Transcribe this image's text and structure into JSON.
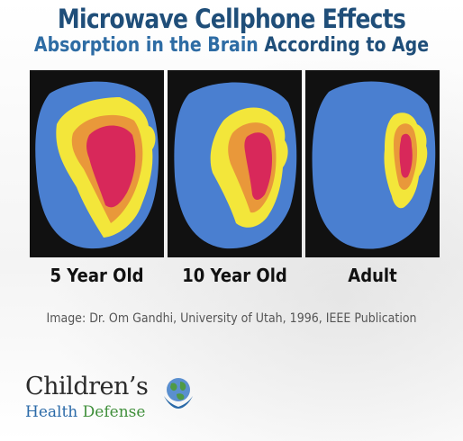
{
  "header": {
    "title": "Microwave Cellphone Effects",
    "subtitle_plain": "Absorption in the Brain ",
    "subtitle_bold": "According to Age"
  },
  "scans": [
    {
      "label": "5 Year Old"
    },
    {
      "label": "10 Year Old"
    },
    {
      "label": "Adult"
    }
  ],
  "credit": "Image: Dr. Om Gandhi, University of Utah, 1996, IEEE Publication",
  "logo": {
    "line1": "Children’s",
    "line2_part1": "Health ",
    "line2_part2": "Defense",
    "icon": "globe-hands-icon"
  },
  "colors": {
    "title": "#1f4e79",
    "subtitle": "#2e6ca4",
    "scan_background": "#111111",
    "low_absorption": "#4a7fd0",
    "medium_absorption": "#f3e63a",
    "high_absorption": "#e9983a",
    "peak_absorption": "#d8285a"
  }
}
